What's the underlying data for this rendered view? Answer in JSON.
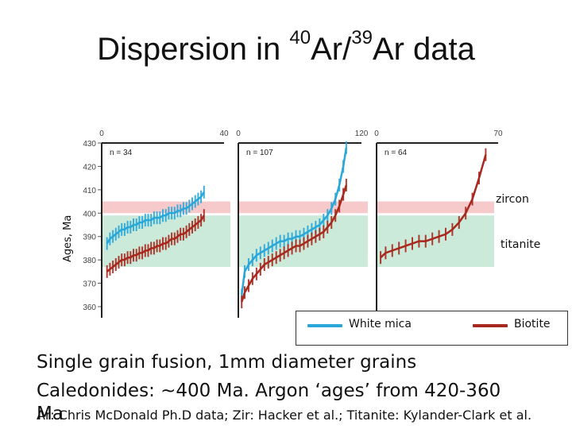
{
  "title": {
    "prefix": "Dispersion in ",
    "sup1": "40",
    "mid": "Ar/",
    "sup2": "39",
    "suffix": "Ar data"
  },
  "ylabel": "Ages, Ma",
  "bands": {
    "zircon": {
      "label": "zircon",
      "range": [
        400,
        405
      ],
      "color": "#f6c9cb"
    },
    "titanite": {
      "label": "titanite",
      "range": [
        377,
        399
      ],
      "color": "#cbead9"
    }
  },
  "legend": {
    "white_mica": {
      "label": "White mica",
      "color": "#2aa7d9"
    },
    "biotite": {
      "label": "Biotite",
      "color": "#a8281d"
    }
  },
  "captions": [
    "Single grain fusion, 1mm diameter grains",
    "Caledonides: ~400  Ma.  Argon ‘ages’ from 420-360"
  ],
  "credit": "Ar: Chris McDonald Ph.D data; Zir: Hacker et al.; Titanite: Kylander-Clark et al.",
  "caption_overlap": "Ma",
  "chart_data": {
    "type": "line",
    "ylim": [
      360,
      430
    ],
    "yticks": [
      430,
      420,
      410,
      400,
      390,
      380,
      370,
      360
    ],
    "panels": [
      {
        "xlim": [
          0,
          40
        ],
        "xticks": [
          "0",
          "40"
        ],
        "n_label": "n = 34",
        "series": [
          {
            "name": "White mica",
            "x": [
              1,
              2,
              3,
              4,
              5,
              6,
              7,
              8,
              9,
              10,
              11,
              12,
              13,
              14,
              15,
              16,
              17,
              18,
              19,
              20,
              21,
              22,
              23,
              24,
              25,
              26,
              27,
              28,
              29,
              30,
              31,
              32,
              33,
              34
            ],
            "values": [
              387,
              389,
              390,
              391,
              392,
              393,
              393,
              394,
              394,
              395,
              395,
              396,
              396,
              397,
              397,
              397,
              398,
              398,
              398,
              399,
              399,
              400,
              400,
              400,
              401,
              401,
              402,
              402,
              403,
              404,
              405,
              406,
              407,
              409
            ]
          },
          {
            "name": "Biotite",
            "x": [
              1,
              2,
              3,
              4,
              5,
              6,
              7,
              8,
              9,
              10,
              11,
              12,
              13,
              14,
              15,
              16,
              17,
              18,
              19,
              20,
              21,
              22,
              23,
              24,
              25,
              26,
              27,
              28,
              29,
              30,
              31,
              32,
              33,
              34
            ],
            "values": [
              375,
              376,
              377,
              378,
              379,
              380,
              380,
              381,
              381,
              382,
              382,
              383,
              383,
              384,
              384,
              385,
              385,
              386,
              386,
              387,
              387,
              388,
              389,
              389,
              390,
              391,
              391,
              392,
              393,
              394,
              395,
              396,
              397,
              399
            ]
          }
        ]
      },
      {
        "xlim": [
          0,
          120
        ],
        "xticks": [
          "0",
          "120"
        ],
        "n_label": "n = 107",
        "series": [
          {
            "name": "White mica",
            "x": [
              1,
              4,
              8,
              12,
              16,
              20,
              24,
              28,
              32,
              36,
              40,
              44,
              48,
              52,
              56,
              60,
              64,
              68,
              72,
              76,
              80,
              84,
              88,
              92,
              96,
              100,
              104,
              107
            ],
            "values": [
              365,
              375,
              378,
              380,
              382,
              383,
              384,
              385,
              386,
              387,
              388,
              388,
              389,
              389,
              390,
              390,
              391,
              392,
              393,
              394,
              395,
              397,
              399,
              402,
              406,
              412,
              420,
              428
            ]
          },
          {
            "name": "Biotite",
            "x": [
              1,
              4,
              8,
              12,
              16,
              20,
              24,
              28,
              32,
              36,
              40,
              44,
              48,
              52,
              56,
              60,
              64,
              68,
              72,
              76,
              80,
              84,
              88,
              92,
              96,
              100,
              104,
              107
            ],
            "values": [
              362,
              366,
              369,
              372,
              374,
              376,
              378,
              379,
              380,
              381,
              382,
              383,
              384,
              385,
              386,
              386,
              387,
              388,
              389,
              390,
              391,
              392,
              394,
              396,
              399,
              403,
              408,
              412
            ]
          }
        ]
      },
      {
        "xlim": [
          0,
          70
        ],
        "xticks": [
          "0",
          "70"
        ],
        "n_label": "n = 64",
        "series": [
          {
            "name": "Biotite",
            "x": [
              1,
              4,
              8,
              12,
              16,
              20,
              24,
              28,
              32,
              36,
              40,
              44,
              48,
              52,
              56,
              60,
              64
            ],
            "values": [
              381,
              383,
              384,
              385,
              386,
              387,
              388,
              388,
              389,
              390,
              391,
              393,
              396,
              400,
              406,
              415,
              425
            ]
          }
        ]
      }
    ]
  }
}
